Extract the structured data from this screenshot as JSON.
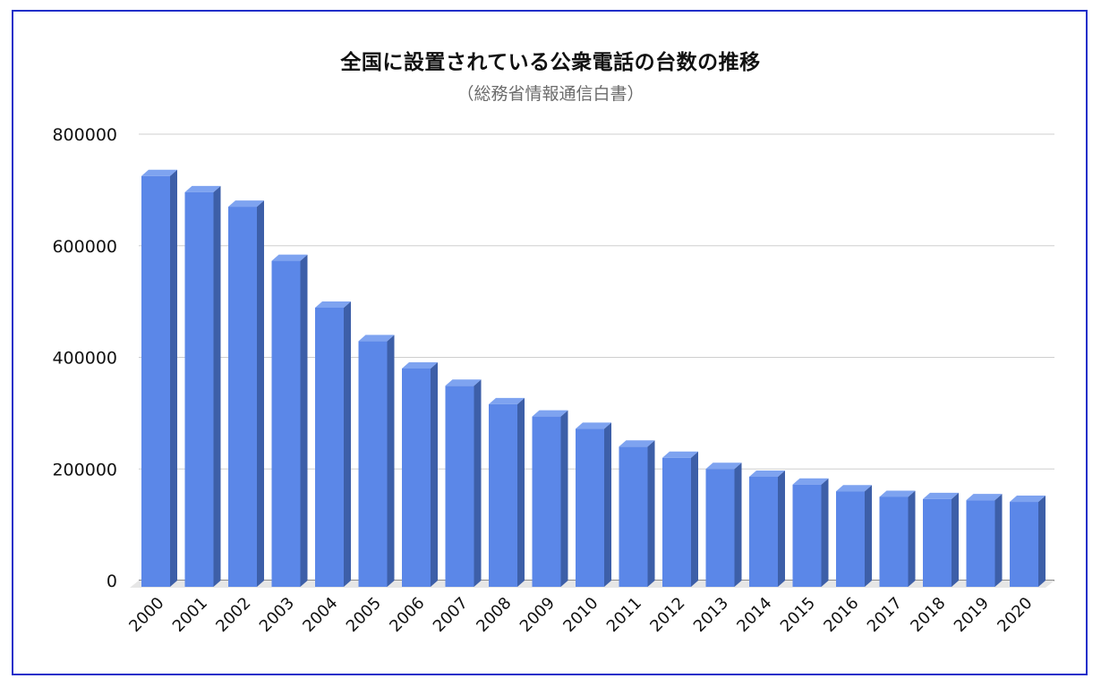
{
  "chart_data": {
    "type": "bar",
    "style": "3d",
    "title": "全国に設置されている公衆電話の台数の推移",
    "subtitle": "（総務省情報通信白書）",
    "xlabel": "",
    "ylabel": "",
    "categories": [
      "2000",
      "2001",
      "2002",
      "2003",
      "2004",
      "2005",
      "2006",
      "2007",
      "2008",
      "2009",
      "2010",
      "2011",
      "2012",
      "2013",
      "2014",
      "2015",
      "2016",
      "2017",
      "2018",
      "2019",
      "2020"
    ],
    "series": [
      {
        "values": [
          725000,
          696000,
          670000,
          573000,
          489000,
          429000,
          380000,
          349000,
          316000,
          294000,
          272000,
          240000,
          220000,
          200000,
          186000,
          172000,
          160000,
          150000,
          146000,
          144000,
          141000
        ]
      }
    ],
    "ylim": [
      0,
      800000
    ],
    "yticks": [
      "0",
      "200000",
      "400000",
      "600000",
      "800000"
    ],
    "grid": true,
    "legend": "none",
    "colors": {
      "bar_front": "#5b87e8",
      "bar_top": "#7ea3f0",
      "bar_side": "#3d5fa8",
      "grid": "#cfcfcf",
      "frame": "#1f2fc9"
    }
  }
}
